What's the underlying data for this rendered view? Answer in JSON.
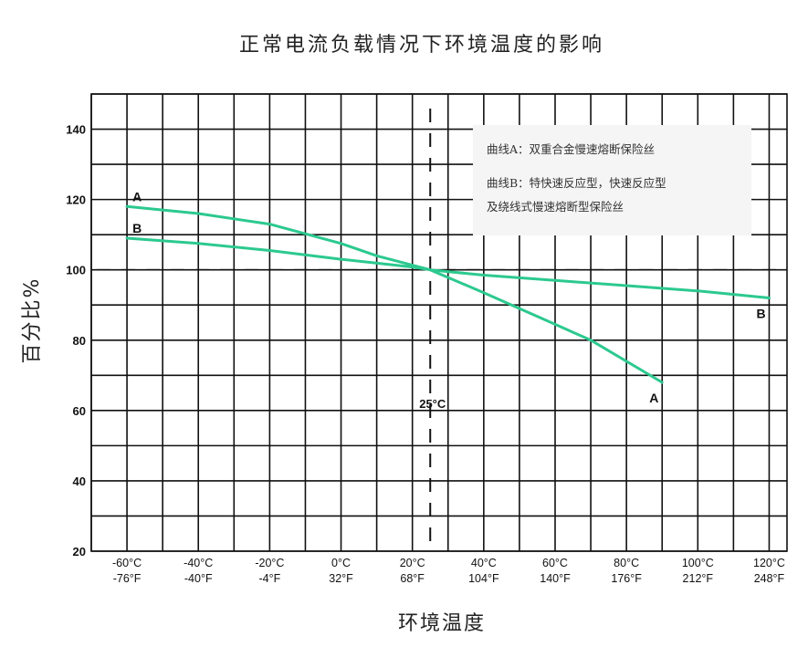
{
  "chart_data": {
    "type": "line",
    "title": "正常电流负载情况下环境温度的影响",
    "xlabel": "环境温度",
    "ylabel": "百分比%",
    "xlim": [
      -70,
      125
    ],
    "ylim": [
      20,
      150
    ],
    "yticks": [
      20,
      40,
      60,
      80,
      100,
      120,
      140
    ],
    "xticks": [
      {
        "value": -60,
        "c": "-60°C",
        "f": "-76°F"
      },
      {
        "value": -40,
        "c": "-40°C",
        "f": "-40°F"
      },
      {
        "value": -20,
        "c": "-20°C",
        "f": "-4°F"
      },
      {
        "value": 0,
        "c": "0°C",
        "f": "32°F"
      },
      {
        "value": 20,
        "c": "20°C",
        "f": "68°F"
      },
      {
        "value": 40,
        "c": "40°C",
        "f": "104°F"
      },
      {
        "value": 60,
        "c": "60°C",
        "f": "140°F"
      },
      {
        "value": 80,
        "c": "80°C",
        "f": "176°F"
      },
      {
        "value": 100,
        "c": "100°C",
        "f": "212°F"
      },
      {
        "value": 120,
        "c": "120°C",
        "f": "248°F"
      }
    ],
    "grid": true,
    "reference_lines": {
      "y": 100,
      "x": 25,
      "x_label": "25°C"
    },
    "series": [
      {
        "name": "A",
        "color": "#2cc98f",
        "x": [
          -60,
          -40,
          -20,
          0,
          10,
          25,
          40,
          60,
          70,
          90
        ],
        "y": [
          118,
          116,
          113,
          107.5,
          104,
          100,
          93.5,
          84.5,
          80,
          68
        ],
        "start_label": "A",
        "end_label": "A"
      },
      {
        "name": "B",
        "color": "#2cc98f",
        "x": [
          -60,
          -40,
          -20,
          0,
          20,
          25,
          40,
          60,
          80,
          100,
          120
        ],
        "y": [
          109,
          107.5,
          105.5,
          103,
          100.8,
          100,
          98.5,
          97,
          95.5,
          94,
          92
        ],
        "start_label": "B",
        "end_label": "B"
      }
    ],
    "legend": {
      "placement": "top-right",
      "lines": [
        "曲线A：双重合金慢速熔断保险丝",
        "曲线B：特快速反应型，快速反应型",
        "及绕线式慢速熔断型保险丝"
      ]
    }
  }
}
